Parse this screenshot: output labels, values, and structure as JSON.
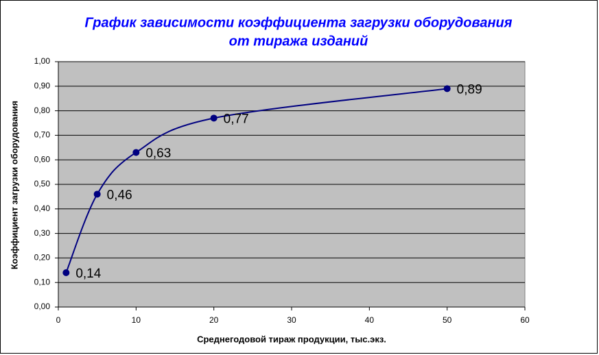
{
  "chart_data": {
    "type": "line",
    "title": [
      "График зависимости коэффициента загрузки оборудования",
      "от тиража изданий"
    ],
    "x_label": "Среднегодовой тираж продукции, тыс.экз.",
    "y_label": "Коэффициент загрузки оборудования",
    "x": [
      1,
      5,
      10,
      20,
      50
    ],
    "series": [
      {
        "color": "#000080",
        "values": [
          0.14,
          0.46,
          0.63,
          0.77,
          0.89
        ],
        "value_labels": [
          "0,14",
          "0,46",
          "0,63",
          "0,77",
          "0,89"
        ]
      }
    ],
    "smooth": true,
    "xlim": [
      0,
      60
    ],
    "xticks": [
      0,
      10,
      20,
      30,
      40,
      50,
      60
    ],
    "ylim": [
      0,
      1
    ],
    "yticks": [
      {
        "value": 0,
        "label": "0,00"
      },
      {
        "value": 0.1,
        "label": "0,10"
      },
      {
        "value": 0.2,
        "label": "0,20"
      },
      {
        "value": 0.3,
        "label": "0,30"
      },
      {
        "value": 0.4,
        "label": "0,40"
      },
      {
        "value": 0.5,
        "label": "0,50"
      },
      {
        "value": 0.6,
        "label": "0,60"
      },
      {
        "value": 0.7,
        "label": "0,70"
      },
      {
        "value": 0.8,
        "label": "0,80"
      },
      {
        "value": 0.9,
        "label": "0,90"
      },
      {
        "value": 1,
        "label": "1,00"
      }
    ],
    "grid": true,
    "plot_background": "#c0c0c0"
  }
}
